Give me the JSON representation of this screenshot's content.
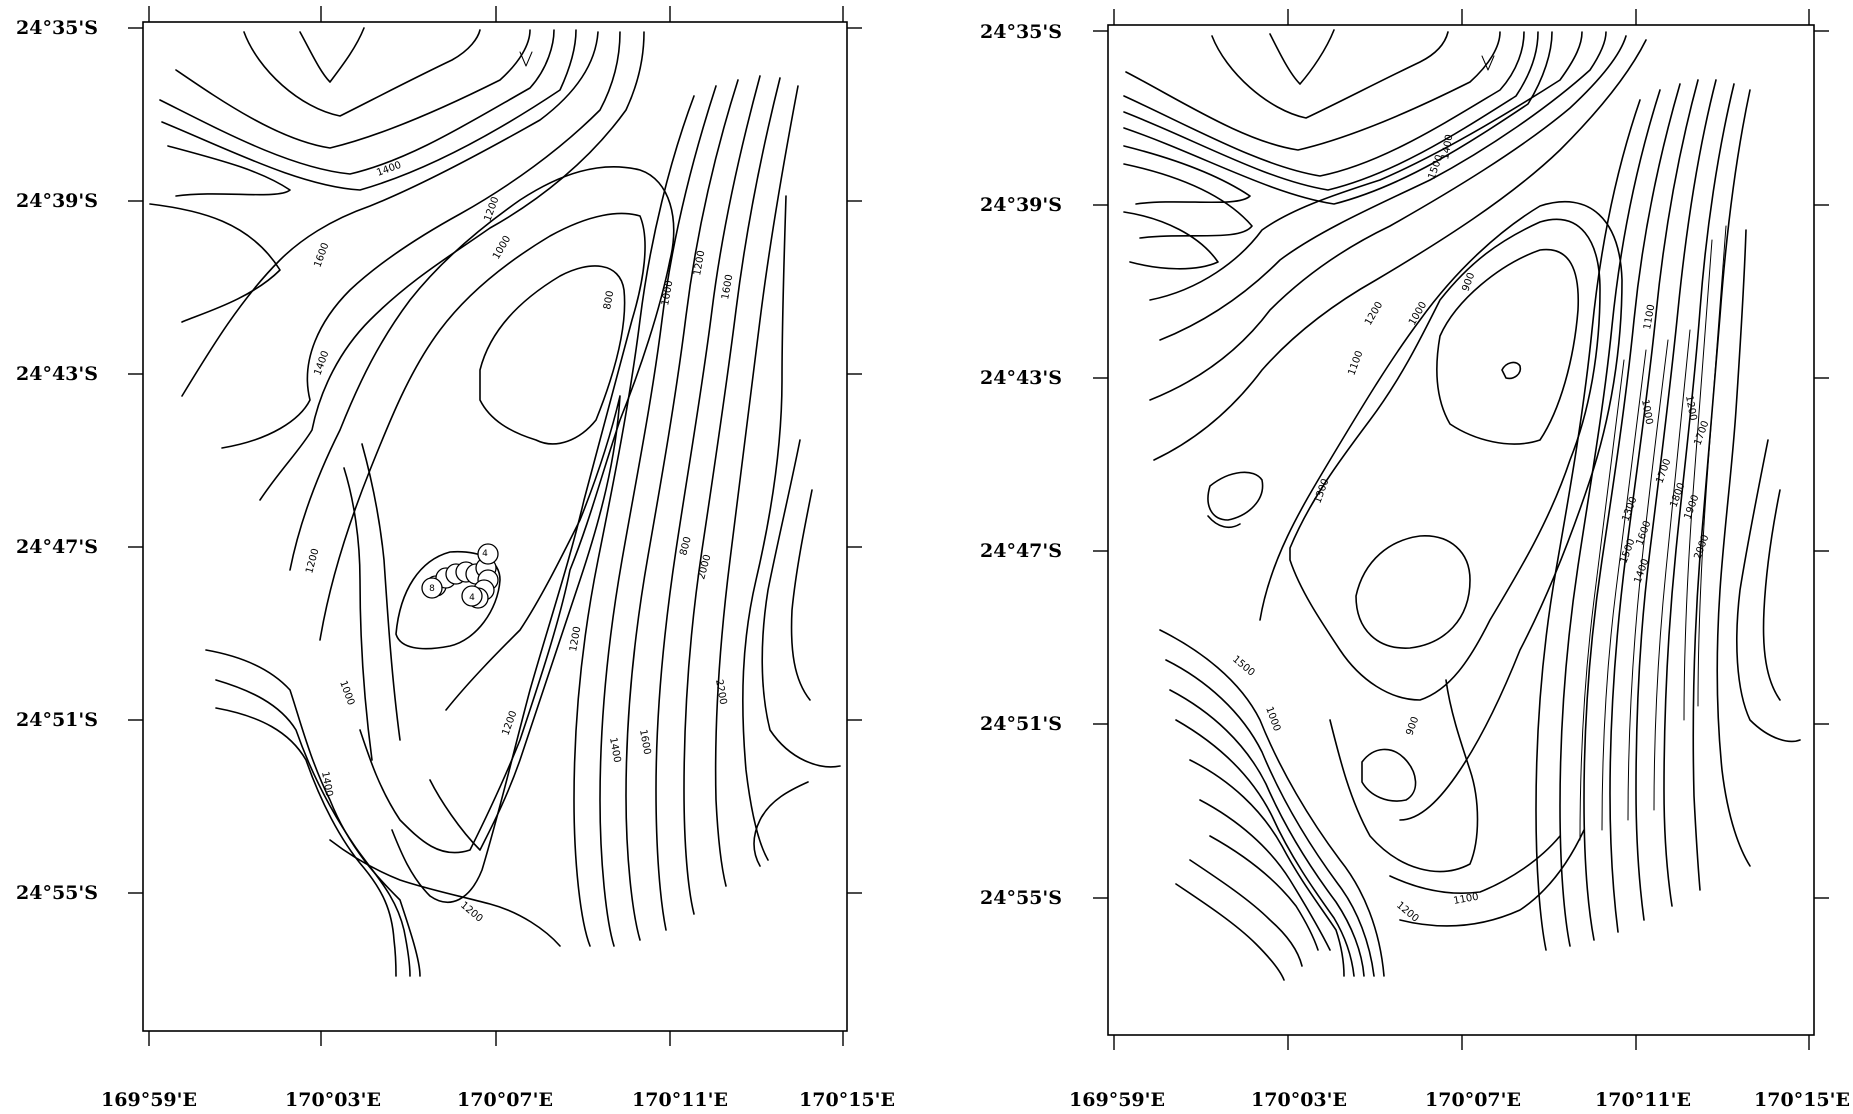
{
  "maps": [
    {
      "id": "left",
      "lat_labels": [
        "24°35'S",
        "24°39'S",
        "24°43'S",
        "24°47'S",
        "24°51'S",
        "24°55'S"
      ],
      "lon_labels": [
        "169°59'E",
        "170°03'E",
        "170°07'E",
        "170°11'E",
        "170°15'E"
      ],
      "contour_labels": [
        "1400",
        "1600",
        "1200",
        "1000",
        "800",
        "1000",
        "1200",
        "1600",
        "1400",
        "1200",
        "800",
        "2000",
        "1000",
        "1200",
        "1200",
        "2200",
        "1400",
        "1600",
        "1400",
        "1200"
      ],
      "marker_labels": [
        "4",
        "8",
        "4"
      ]
    },
    {
      "id": "right",
      "lat_labels": [
        "24°35'S",
        "24°39'S",
        "24°43'S",
        "24°47'S",
        "24°51'S",
        "24°55'S"
      ],
      "lon_labels": [
        "169°59'E",
        "170°03'E",
        "170°07'E",
        "170°11'E",
        "170°15'E"
      ],
      "contour_labels": [
        "1400",
        "1500",
        "900",
        "1000",
        "1200",
        "1100",
        "1300",
        "1100",
        "1000",
        "1200",
        "1700",
        "1300",
        "1700",
        "1500",
        "1600",
        "1800",
        "1900",
        "2000",
        "1400",
        "1500",
        "900",
        "1000",
        "1100",
        "1200"
      ]
    }
  ]
}
